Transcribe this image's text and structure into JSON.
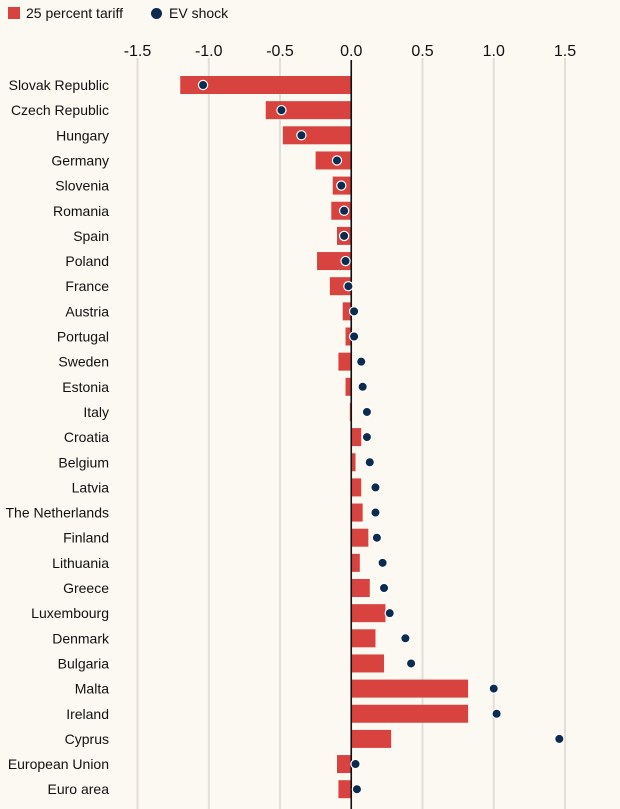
{
  "chart_data": {
    "type": "bar",
    "orientation": "horizontal",
    "title": "",
    "xlabel": "",
    "ylabel": "",
    "xlim": [
      -1.5,
      1.5
    ],
    "xticks": [
      -1.5,
      -1.0,
      -0.5,
      0.0,
      0.5,
      1.0,
      1.5
    ],
    "xtick_labels": [
      "-1.5",
      "-1.0",
      "-0.5",
      "0.0",
      "0.5",
      "1.0",
      "1.5"
    ],
    "grid": "vertical",
    "legend_position": "top-left",
    "categories": [
      "Slovak Republic",
      "Czech Republic",
      "Hungary",
      "Germany",
      "Slovenia",
      "Romania",
      "Spain",
      "Poland",
      "France",
      "Austria",
      "Portugal",
      "Sweden",
      "Estonia",
      "Italy",
      "Croatia",
      "Belgium",
      "Latvia",
      "The Netherlands",
      "Finland",
      "Lithuania",
      "Greece",
      "Luxembourg",
      "Denmark",
      "Bulgaria",
      "Malta",
      "Ireland",
      "Cyprus",
      "European Union",
      "Euro area"
    ],
    "series": [
      {
        "name": "25 percent tariff",
        "kind": "bar",
        "color": "#d8433f",
        "values": [
          -1.2,
          -0.6,
          -0.48,
          -0.25,
          -0.13,
          -0.14,
          -0.1,
          -0.24,
          -0.15,
          -0.06,
          -0.04,
          -0.09,
          -0.04,
          -0.01,
          0.07,
          0.03,
          0.07,
          0.08,
          0.12,
          0.06,
          0.13,
          0.24,
          0.17,
          0.23,
          0.82,
          0.82,
          0.28,
          -0.1,
          -0.09
        ]
      },
      {
        "name": "EV shock",
        "kind": "dot",
        "color": "#0d2b4e",
        "values": [
          -1.04,
          -0.49,
          -0.35,
          -0.1,
          -0.07,
          -0.05,
          -0.05,
          -0.04,
          -0.02,
          0.02,
          0.02,
          0.07,
          0.08,
          0.11,
          0.11,
          0.13,
          0.17,
          0.17,
          0.18,
          0.22,
          0.23,
          0.27,
          0.38,
          0.42,
          1.0,
          1.02,
          1.46,
          0.03,
          0.04
        ]
      }
    ]
  }
}
